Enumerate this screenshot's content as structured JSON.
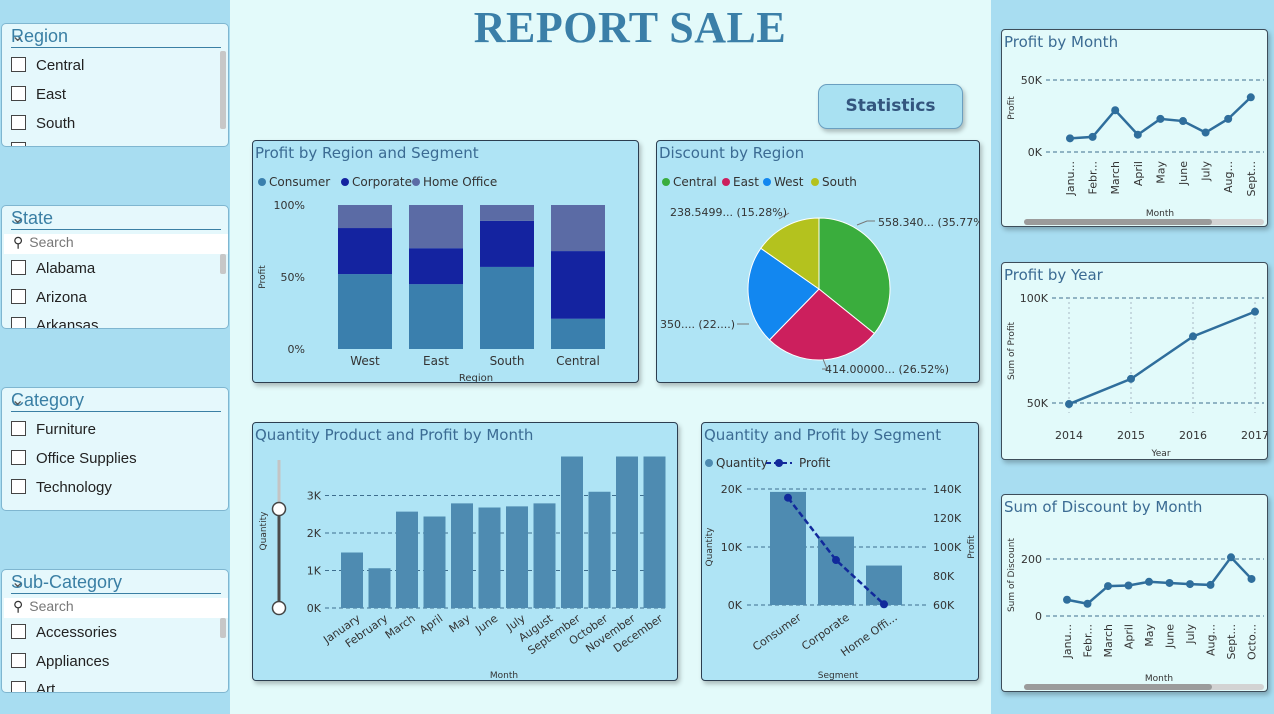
{
  "title": "REPORT SALE",
  "statistics_button": "Statistics",
  "slicers": {
    "region": {
      "title": "Region",
      "items": [
        "Central",
        "East",
        "South"
      ]
    },
    "state": {
      "title": "State",
      "search_placeholder": "Search",
      "items": [
        "Alabama",
        "Arizona",
        "Arkansas"
      ]
    },
    "category": {
      "title": "Category",
      "items": [
        "Furniture",
        "Office Supplies",
        "Technology"
      ]
    },
    "subcategory": {
      "title": "Sub-Category",
      "search_placeholder": "Search",
      "items": [
        "Accessories",
        "Appliances",
        "Art"
      ]
    }
  },
  "colors": {
    "consumer": "#3a7fad",
    "corporate": "#1423a0",
    "home_office": "#5b6ba5",
    "central": "#3aad3d",
    "east": "#cc1f5d",
    "west": "#1287f0",
    "south": "#b4c21e",
    "bar": "#4e8bb1",
    "line": "#2f6e9c",
    "profit_line": "#11299b"
  },
  "chart_data": [
    {
      "id": "profit_region_segment",
      "type": "bar",
      "title": "Profit by Region and Segment",
      "stacked": "100%",
      "categories": [
        "West",
        "East",
        "South",
        "Central"
      ],
      "series": [
        {
          "name": "Consumer",
          "values": [
            52,
            45,
            57,
            21
          ]
        },
        {
          "name": "Corporate",
          "values": [
            32,
            25,
            32,
            47
          ]
        },
        {
          "name": "Home Office",
          "values": [
            16,
            30,
            11,
            32
          ]
        }
      ],
      "xlabel": "Region",
      "ylabel": "Profit",
      "yticks": [
        "0%",
        "50%",
        "100%"
      ],
      "legend": "top-left"
    },
    {
      "id": "discount_region",
      "type": "pie",
      "title": "Discount by Region",
      "labels": [
        "Central",
        "East",
        "West",
        "South"
      ],
      "values": [
        35.77,
        26.52,
        22.43,
        15.28
      ],
      "data_labels": [
        "558.340... (35.77%)",
        "414.00000... (26.52%)",
        "350.... (22....)",
        "238.5499... (15.28%)"
      ],
      "legend": "top-left"
    },
    {
      "id": "quantity_month",
      "type": "bar",
      "title": "Quantity Product and Profit by Month",
      "categories": [
        "January",
        "February",
        "March",
        "April",
        "May",
        "June",
        "July",
        "August",
        "September",
        "October",
        "November",
        "December"
      ],
      "values": [
        1480,
        1060,
        2570,
        2440,
        2790,
        2680,
        2710,
        2790,
        4040,
        3100,
        4040,
        4040
      ],
      "xlabel": "Month",
      "ylabel": "Quantity",
      "yticks": [
        "0K",
        "1K",
        "2K",
        "3K"
      ],
      "ylim": [
        0,
        4000
      ]
    },
    {
      "id": "quantity_profit_segment",
      "type": "bar",
      "title": "Quantity and Profit by Segment",
      "categories": [
        "Consumer",
        "Corporate",
        "Home Offi..."
      ],
      "series": [
        {
          "name": "Quantity",
          "values": [
            19500,
            11800,
            6800
          ]
        },
        {
          "name": "Profit",
          "values": [
            134000,
            91000,
            60500
          ]
        }
      ],
      "xlabel": "Segment",
      "ylabel": "Quantity",
      "y2label": "Profit",
      "yticks": [
        "0K",
        "10K",
        "20K"
      ],
      "y2ticks": [
        "60K",
        "80K",
        "100K",
        "120K",
        "140K"
      ],
      "ylim": [
        0,
        21000
      ],
      "y2lim": [
        56000,
        146000
      ],
      "legend": "top-left"
    },
    {
      "id": "profit_month",
      "type": "line",
      "title": "Profit by Month",
      "categories": [
        "Janu...",
        "Febr...",
        "March",
        "April",
        "May",
        "June",
        "July",
        "Aug...",
        "Sept..."
      ],
      "values": [
        9500,
        10500,
        29000,
        12000,
        23000,
        21500,
        13500,
        23000,
        38000
      ],
      "xlabel": "Month",
      "ylabel": "Profit",
      "yticks": [
        "0K",
        "50K"
      ],
      "ylim": [
        -16000,
        68000
      ]
    },
    {
      "id": "profit_year",
      "type": "line",
      "title": "Profit by Year",
      "categories": [
        "2014",
        "2015",
        "2016",
        "2017"
      ],
      "values": [
        49500,
        61500,
        81700,
        93500
      ],
      "xlabel": "Year",
      "ylabel": "Sum of Profit",
      "yticks": [
        "50K",
        "100K"
      ],
      "ylim": [
        42000,
        103000
      ]
    },
    {
      "id": "discount_month",
      "type": "line",
      "title": "Sum of Discount by Month",
      "categories": [
        "Janu...",
        "Febr...",
        "March",
        "April",
        "May",
        "June",
        "July",
        "Aug...",
        "Sept...",
        "Octo..."
      ],
      "values": [
        57,
        43,
        105,
        107,
        120,
        116,
        112,
        109,
        206,
        130
      ],
      "xlabel": "Month",
      "ylabel": "Sum of Discount",
      "yticks": [
        "0",
        "200"
      ],
      "ylim": [
        -50,
        270
      ]
    }
  ]
}
